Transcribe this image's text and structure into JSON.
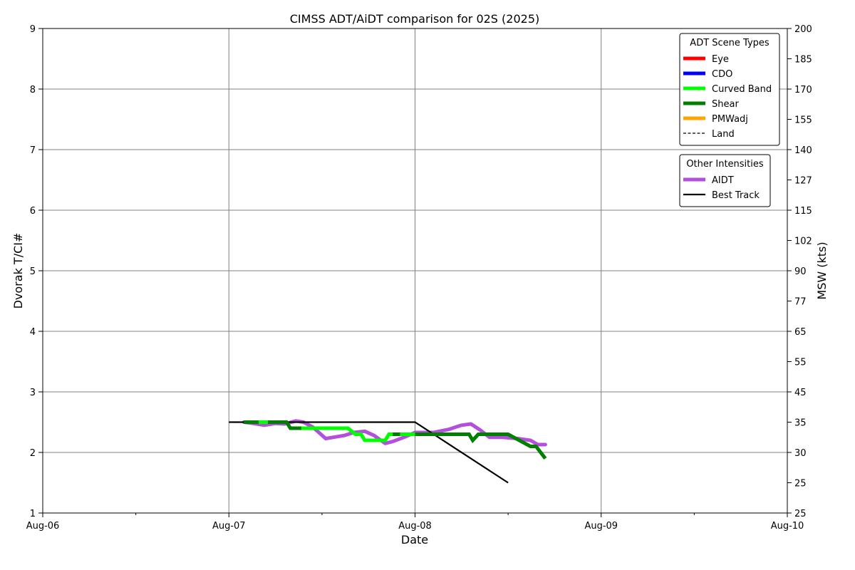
{
  "chart_data": {
    "type": "line",
    "title": "CIMSS ADT/AiDT comparison for 02S (2025)",
    "xlabel": "Date",
    "ylabel": "Dvorak T/CI#",
    "ylabel_right": "MSW (kts)",
    "x_ticks": [
      "Aug-06",
      "Aug-07",
      "Aug-08",
      "Aug-09",
      "Aug-10"
    ],
    "xlim_days": [
      6,
      10
    ],
    "ylim": [
      1,
      9
    ],
    "y_ticks": [
      "1",
      "2",
      "3",
      "4",
      "5",
      "6",
      "7",
      "8",
      "9"
    ],
    "y_right_ticks": [
      "25",
      "25",
      "30",
      "35",
      "45",
      "55",
      "65",
      "77",
      "90",
      "102",
      "115",
      "127",
      "140",
      "155",
      "170",
      "185",
      "200"
    ],
    "grid": true,
    "legend_scene": {
      "title": "ADT Scene Types",
      "entries": [
        {
          "label": "Eye",
          "color": "#ff0000",
          "style": "solid"
        },
        {
          "label": "CDO",
          "color": "#0000ff",
          "style": "solid"
        },
        {
          "label": "Curved Band",
          "color": "#00ff00",
          "style": "solid"
        },
        {
          "label": "Shear",
          "color": "#008000",
          "style": "solid"
        },
        {
          "label": "PMWadj",
          "color": "#ffa500",
          "style": "solid"
        },
        {
          "label": "Land",
          "color": "#000000",
          "style": "dashed"
        }
      ]
    },
    "legend_other": {
      "title": "Other Intensities",
      "entries": [
        {
          "label": "AIDT",
          "color": "#b44fdc",
          "style": "solid"
        },
        {
          "label": "Best Track",
          "color": "#000000",
          "style": "solid"
        }
      ]
    },
    "series": [
      {
        "name": "AIDT",
        "color": "#b44fdc",
        "points": [
          [
            7.08,
            2.5
          ],
          [
            7.13,
            2.48
          ],
          [
            7.19,
            2.45
          ],
          [
            7.25,
            2.48
          ],
          [
            7.3,
            2.47
          ],
          [
            7.36,
            2.52
          ],
          [
            7.4,
            2.5
          ],
          [
            7.45,
            2.42
          ],
          [
            7.52,
            2.23
          ],
          [
            7.56,
            2.25
          ],
          [
            7.62,
            2.28
          ],
          [
            7.67,
            2.33
          ],
          [
            7.73,
            2.35
          ],
          [
            7.78,
            2.28
          ],
          [
            7.84,
            2.15
          ],
          [
            7.88,
            2.18
          ],
          [
            7.94,
            2.25
          ],
          [
            8.0,
            2.33
          ],
          [
            8.1,
            2.33
          ],
          [
            8.18,
            2.38
          ],
          [
            8.25,
            2.45
          ],
          [
            8.3,
            2.47
          ],
          [
            8.35,
            2.37
          ],
          [
            8.4,
            2.25
          ],
          [
            8.47,
            2.25
          ],
          [
            8.55,
            2.23
          ],
          [
            8.62,
            2.2
          ],
          [
            8.66,
            2.13
          ],
          [
            8.7,
            2.13
          ]
        ]
      },
      {
        "name": "Best Track",
        "color": "#000000",
        "points": [
          [
            7.0,
            2.5
          ],
          [
            8.0,
            2.5
          ],
          [
            8.5,
            1.5
          ]
        ]
      }
    ],
    "adt_segments": [
      {
        "scene": "Shear",
        "points": [
          [
            7.08,
            2.5
          ],
          [
            7.16,
            2.5
          ]
        ]
      },
      {
        "scene": "Curved Band",
        "points": [
          [
            7.16,
            2.5
          ],
          [
            7.21,
            2.5
          ]
        ]
      },
      {
        "scene": "Shear",
        "points": [
          [
            7.21,
            2.5
          ],
          [
            7.31,
            2.5
          ],
          [
            7.33,
            2.4
          ],
          [
            7.39,
            2.4
          ]
        ]
      },
      {
        "scene": "Curved Band",
        "points": [
          [
            7.39,
            2.4
          ],
          [
            7.64,
            2.4
          ],
          [
            7.68,
            2.3
          ],
          [
            7.71,
            2.3
          ],
          [
            7.73,
            2.2
          ],
          [
            7.84,
            2.2
          ],
          [
            7.86,
            2.3
          ],
          [
            7.88,
            2.3
          ]
        ]
      },
      {
        "scene": "Shear",
        "points": [
          [
            7.88,
            2.3
          ],
          [
            7.92,
            2.3
          ]
        ]
      },
      {
        "scene": "Curved Band",
        "points": [
          [
            7.92,
            2.3
          ],
          [
            8.0,
            2.3
          ]
        ]
      },
      {
        "scene": "Shear",
        "points": [
          [
            8.0,
            2.3
          ],
          [
            8.29,
            2.3
          ],
          [
            8.31,
            2.2
          ],
          [
            8.34,
            2.3
          ],
          [
            8.5,
            2.3
          ],
          [
            8.62,
            2.1
          ],
          [
            8.65,
            2.1
          ],
          [
            8.7,
            1.9
          ]
        ]
      }
    ]
  }
}
